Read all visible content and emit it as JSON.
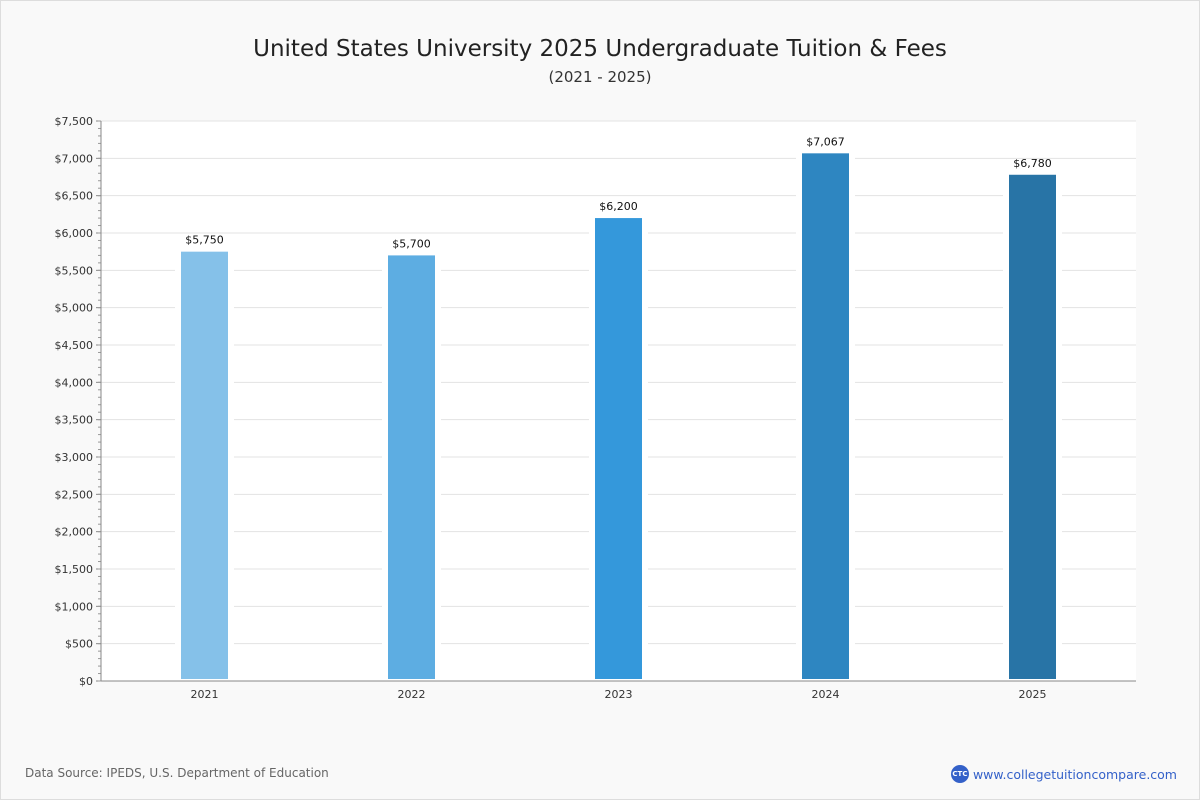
{
  "header": {
    "title": "United States University 2025 Undergraduate Tuition & Fees",
    "subtitle": "(2021 - 2025)"
  },
  "footer": {
    "source": "Data Source: IPEDS, U.S. Department of Education",
    "brand": "www.collegetuitioncompare.com",
    "logo_text": "CTC"
  },
  "chart_data": {
    "type": "bar",
    "title": "United States University 2025 Undergraduate Tuition & Fees",
    "subtitle": "(2021 - 2025)",
    "categories": [
      "2021",
      "2022",
      "2023",
      "2024",
      "2025"
    ],
    "values": [
      5750,
      5700,
      6200,
      7067,
      6780
    ],
    "labels": [
      "$5,750",
      "$5,700",
      "$6,200",
      "$7,067",
      "$6,780"
    ],
    "colors": [
      "#85c1e9",
      "#5dade2",
      "#3498db",
      "#2e86c1",
      "#2874a6"
    ],
    "ylim": [
      0,
      7500
    ],
    "yticks": [
      0,
      500,
      1000,
      1500,
      2000,
      2500,
      3000,
      3500,
      4000,
      4500,
      5000,
      5500,
      6000,
      6500,
      7000,
      7500
    ],
    "ytick_labels": [
      "$0",
      "$500",
      "$1,000",
      "$1,500",
      "$2,000",
      "$2,500",
      "$3,000",
      "$3,500",
      "$4,000",
      "$4,500",
      "$5,000",
      "$5,500",
      "$6,000",
      "$6,500",
      "$7,000",
      "$7,500"
    ],
    "xlabel": "",
    "ylabel": "",
    "grid": true
  }
}
